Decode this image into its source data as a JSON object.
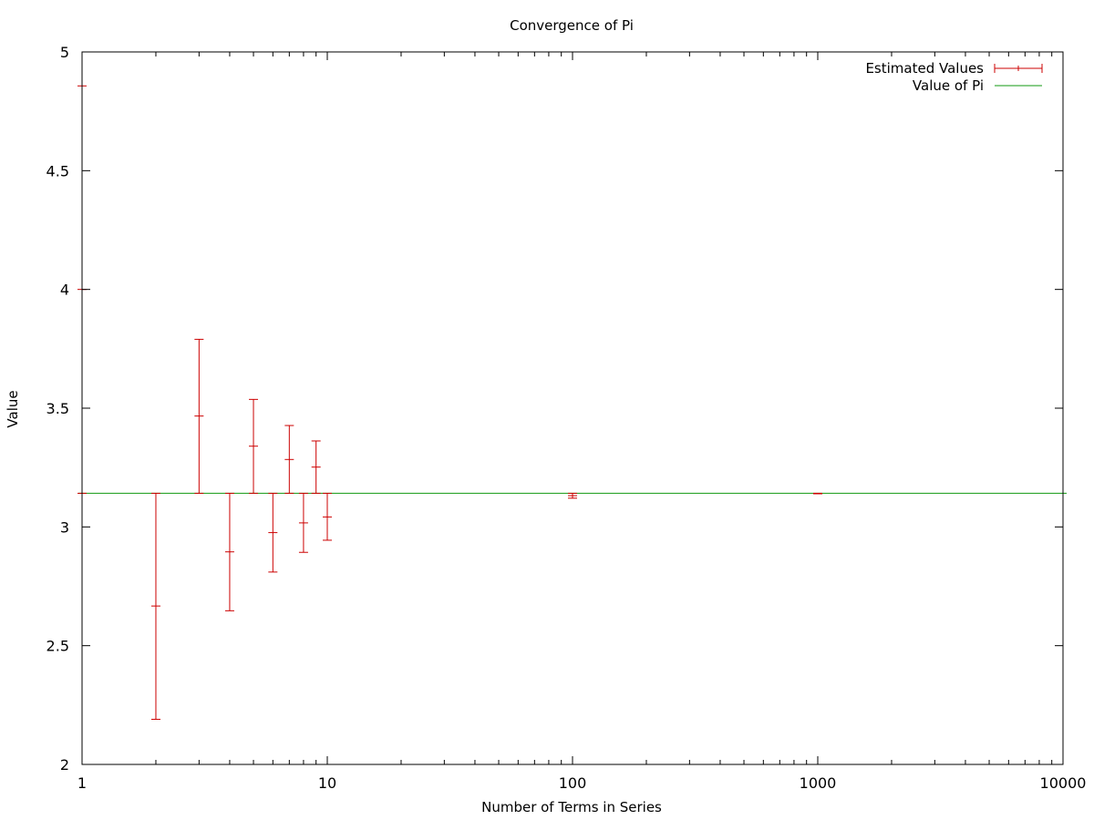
{
  "chart_data": {
    "type": "scatter",
    "title": "Convergence of Pi",
    "xlabel": "Number of Terms in Series",
    "ylabel": "Value",
    "xscale": "log",
    "xlim": [
      1,
      10000
    ],
    "ylim": [
      2,
      5
    ],
    "x_ticks": [
      "1",
      "10",
      "100",
      "1000",
      "10000"
    ],
    "y_ticks": [
      "2",
      "2.5",
      "3",
      "3.5",
      "4",
      "4.5",
      "5"
    ],
    "grid": false,
    "legend_position": "top-right",
    "colors": {
      "estimated": "#cc0000",
      "pi": "#119911",
      "axis": "#000000"
    },
    "series": [
      {
        "name": "Estimated Values",
        "style": "errorbars",
        "points": [
          {
            "x": 1,
            "y": 4.0,
            "ylow": 3.14159,
            "yhigh": 4.857
          },
          {
            "x": 2,
            "y": 2.667,
            "ylow": 2.19,
            "yhigh": 3.14159
          },
          {
            "x": 3,
            "y": 3.467,
            "ylow": 3.14159,
            "yhigh": 3.79
          },
          {
            "x": 4,
            "y": 2.895,
            "ylow": 2.647,
            "yhigh": 3.14159
          },
          {
            "x": 5,
            "y": 3.34,
            "ylow": 3.14159,
            "yhigh": 3.537
          },
          {
            "x": 6,
            "y": 2.976,
            "ylow": 2.81,
            "yhigh": 3.14159
          },
          {
            "x": 7,
            "y": 3.284,
            "ylow": 3.14159,
            "yhigh": 3.427
          },
          {
            "x": 8,
            "y": 3.017,
            "ylow": 2.893,
            "yhigh": 3.14159
          },
          {
            "x": 9,
            "y": 3.252,
            "ylow": 3.14159,
            "yhigh": 3.362
          },
          {
            "x": 10,
            "y": 3.042,
            "ylow": 2.944,
            "yhigh": 3.14159
          },
          {
            "x": 100,
            "y": 3.1316,
            "ylow": 3.121,
            "yhigh": 3.14159
          },
          {
            "x": 1000,
            "y": 3.1406,
            "ylow": 3.1396,
            "yhigh": 3.1416
          }
        ]
      },
      {
        "name": "Value of Pi",
        "style": "line",
        "y": 3.14159
      }
    ]
  }
}
